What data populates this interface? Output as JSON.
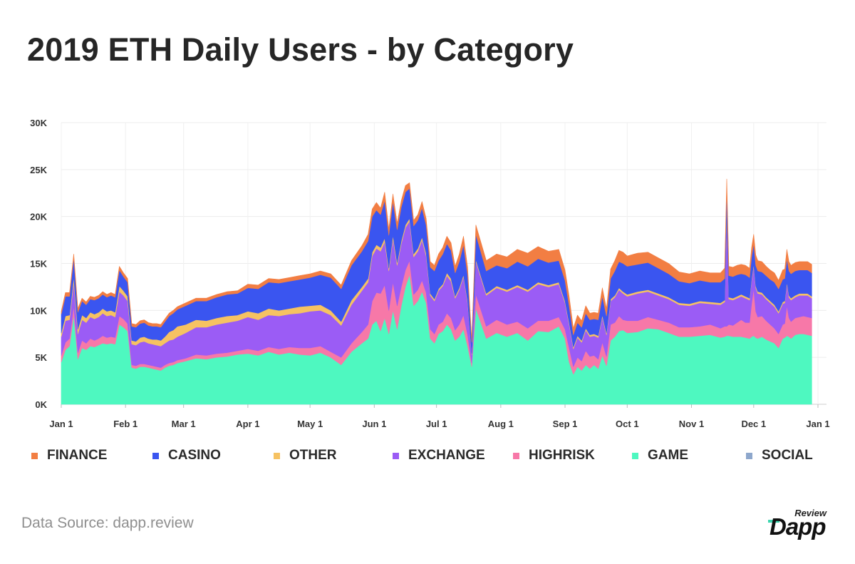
{
  "title": "2019 ETH Daily Users - by Category",
  "source": "Data Source: dapp.review",
  "logo": {
    "small": "Review",
    "large": "Dapp",
    "accent": "#3dd6b0"
  },
  "chart_data": {
    "type": "area",
    "stacked": true,
    "ylim": [
      0,
      30000
    ],
    "y_ticks": [
      {
        "value": 0,
        "label": "0K"
      },
      {
        "value": 5000,
        "label": "5K"
      },
      {
        "value": 10000,
        "label": "10K"
      },
      {
        "value": 15000,
        "label": "15K"
      },
      {
        "value": 20000,
        "label": "20K"
      },
      {
        "value": 25000,
        "label": "25K"
      },
      {
        "value": 30000,
        "label": "30K"
      }
    ],
    "x_ticks": [
      {
        "value": 0,
        "label": "Jan 1"
      },
      {
        "value": 31,
        "label": "Feb 1"
      },
      {
        "value": 59,
        "label": "Mar 1"
      },
      {
        "value": 90,
        "label": "Apr 1"
      },
      {
        "value": 120,
        "label": "May 1"
      },
      {
        "value": 151,
        "label": "Jun 1"
      },
      {
        "value": 181,
        "label": "Jul 1"
      },
      {
        "value": 212,
        "label": "Aug 1"
      },
      {
        "value": 243,
        "label": "Sep 1"
      },
      {
        "value": 273,
        "label": "Oct 1"
      },
      {
        "value": 304,
        "label": "Nov 1"
      },
      {
        "value": 334,
        "label": "Dec 1"
      },
      {
        "value": 365,
        "label": "Jan 1"
      }
    ],
    "x_domain": [
      0,
      365
    ],
    "grid": true,
    "legend_position": "bottom",
    "x": [
      0,
      2,
      4,
      6,
      8,
      10,
      12,
      14,
      16,
      18,
      20,
      22,
      24,
      26,
      28,
      30,
      32,
      34,
      36,
      38,
      40,
      42,
      44,
      46,
      48,
      50,
      52,
      54,
      56,
      58,
      60,
      65,
      70,
      75,
      80,
      85,
      90,
      95,
      100,
      105,
      110,
      115,
      120,
      125,
      130,
      135,
      140,
      145,
      148,
      150,
      152,
      154,
      156,
      158,
      160,
      162,
      164,
      166,
      168,
      170,
      172,
      174,
      176,
      178,
      180,
      182,
      184,
      186,
      188,
      190,
      192,
      194,
      196,
      198,
      200,
      205,
      210,
      215,
      220,
      225,
      230,
      235,
      240,
      243,
      245,
      247,
      249,
      251,
      253,
      255,
      257,
      259,
      261,
      263,
      265,
      267,
      269,
      271,
      273,
      278,
      283,
      288,
      293,
      298,
      303,
      308,
      313,
      318,
      320,
      321,
      322,
      324,
      326,
      328,
      330,
      332,
      333,
      334,
      335,
      336,
      338,
      340,
      342,
      344,
      346,
      348,
      349,
      350,
      351,
      352,
      354,
      356,
      358,
      360,
      362
    ],
    "series": [
      {
        "name": "SOCIAL",
        "color": "#8ea7cc",
        "values": [
          0,
          0,
          0,
          0,
          0,
          0,
          0,
          0,
          0,
          0,
          0,
          0,
          0,
          0,
          0,
          0,
          0,
          0,
          0,
          0,
          0,
          0,
          0,
          0,
          0,
          0,
          0,
          0,
          0,
          0,
          0,
          0,
          0,
          0,
          0,
          0,
          0,
          0,
          0,
          0,
          0,
          0,
          0,
          0,
          0,
          0,
          0,
          0,
          0,
          0,
          0,
          0,
          0,
          0,
          0,
          0,
          0,
          0,
          0,
          0,
          0,
          0,
          0,
          0,
          0,
          0,
          0,
          0,
          0,
          0,
          0,
          0,
          0,
          0,
          0,
          0,
          0,
          0,
          0,
          0,
          0,
          0,
          0,
          0,
          0,
          0,
          0,
          0,
          0,
          0,
          0,
          0,
          0,
          0,
          0,
          0,
          0,
          0,
          0,
          0,
          0,
          0,
          0,
          0,
          0,
          0,
          0,
          0,
          0,
          0,
          0,
          0,
          0,
          0,
          0,
          0,
          0,
          0,
          0,
          0,
          0,
          0,
          0,
          0,
          0,
          0,
          0,
          0,
          0,
          0,
          0,
          0,
          0,
          0,
          0
        ]
      },
      {
        "name": "GAME",
        "color": "#4ef8c0",
        "values": [
          4500,
          5800,
          6200,
          9500,
          4800,
          6000,
          5800,
          6200,
          6100,
          6300,
          6500,
          6400,
          6500,
          6400,
          8500,
          8200,
          7800,
          3900,
          3800,
          4000,
          4000,
          3900,
          3800,
          3700,
          3600,
          3900,
          4100,
          4200,
          4400,
          4500,
          4600,
          4900,
          4800,
          5000,
          5100,
          5300,
          5400,
          5200,
          5600,
          5300,
          5500,
          5300,
          5200,
          5500,
          5000,
          4200,
          5600,
          6500,
          7000,
          8500,
          8900,
          7800,
          9200,
          7500,
          10000,
          8000,
          10500,
          12500,
          13800,
          10500,
          11000,
          12000,
          10800,
          7000,
          6500,
          7500,
          7800,
          8500,
          8000,
          6800,
          7200,
          8000,
          6200,
          4000,
          10200,
          7000,
          7600,
          7200,
          7600,
          6800,
          7800,
          7700,
          8300,
          7000,
          4500,
          3200,
          4000,
          3600,
          4200,
          3800,
          4200,
          3800,
          5200,
          4100,
          6800,
          7200,
          7800,
          7900,
          7600,
          7700,
          8100,
          8000,
          7600,
          7200,
          7200,
          7300,
          7400,
          7100,
          7200,
          7300,
          7300,
          7200,
          7200,
          7200,
          7100,
          7000,
          7200,
          7300,
          7100,
          7000,
          7200,
          6900,
          6700,
          6500,
          6000,
          7000,
          7100,
          7300,
          7200,
          7000,
          7400,
          7500,
          7500,
          7400,
          7300
        ]
      },
      {
        "name": "HIGHRISK",
        "color": "#f778a8",
        "values": [
          700,
          800,
          800,
          1000,
          700,
          800,
          700,
          800,
          700,
          700,
          800,
          700,
          700,
          700,
          900,
          900,
          800,
          300,
          300,
          300,
          300,
          300,
          300,
          300,
          300,
          300,
          300,
          300,
          300,
          300,
          300,
          400,
          400,
          400,
          400,
          400,
          500,
          500,
          500,
          600,
          600,
          700,
          800,
          700,
          600,
          800,
          900,
          1200,
          1500,
          2500,
          3000,
          4000,
          3500,
          2500,
          3000,
          2500,
          2000,
          1800,
          1500,
          1200,
          1200,
          1200,
          1100,
          1000,
          1000,
          1000,
          1000,
          1200,
          1200,
          1100,
          1300,
          1500,
          1200,
          400,
          1500,
          1300,
          1400,
          1300,
          1200,
          1300,
          1100,
          1200,
          1000,
          1000,
          1500,
          800,
          1000,
          1000,
          1500,
          1300,
          1000,
          1000,
          1400,
          1000,
          1700,
          1500,
          1600,
          1100,
          1300,
          1200,
          1200,
          1000,
          1100,
          1000,
          1000,
          1000,
          1100,
          1000,
          1100,
          1000,
          1200,
          1200,
          1500,
          1800,
          1600,
          1700,
          3500,
          5000,
          2800,
          2300,
          2200,
          2000,
          1800,
          1600,
          1500,
          1500,
          1500,
          3200,
          2000,
          1800,
          1800,
          1800,
          1900,
          1900,
          1900
        ]
      },
      {
        "name": "EXCHANGE",
        "color": "#9b5cf5",
        "values": [
          2000,
          2300,
          2000,
          2500,
          2000,
          2200,
          2200,
          2300,
          2300,
          2300,
          2400,
          2300,
          2300,
          2200,
          2600,
          2500,
          2400,
          2200,
          2200,
          2300,
          2400,
          2300,
          2300,
          2300,
          2300,
          2300,
          2400,
          2400,
          2500,
          2600,
          2700,
          2900,
          3000,
          3100,
          3200,
          3200,
          3400,
          3300,
          3400,
          3500,
          3500,
          3700,
          3900,
          3800,
          3900,
          3400,
          4100,
          4400,
          4500,
          4800,
          4700,
          4500,
          4600,
          4200,
          4600,
          4300,
          4600,
          4500,
          4200,
          4000,
          4100,
          4300,
          3900,
          3600,
          3500,
          3600,
          3800,
          4000,
          3900,
          3400,
          3700,
          4100,
          3400,
          900,
          3500,
          3300,
          3400,
          3500,
          3700,
          3900,
          3900,
          3600,
          3500,
          2800,
          2500,
          1900,
          2100,
          2000,
          2200,
          2100,
          2100,
          2300,
          2700,
          2300,
          2500,
          2700,
          2800,
          2800,
          2600,
          2900,
          2700,
          2600,
          2500,
          2400,
          2300,
          2500,
          2200,
          2500,
          2600,
          12000,
          2700,
          2700,
          2600,
          2500,
          2600,
          2400,
          2500,
          2400,
          2500,
          2500,
          2300,
          2300,
          2300,
          2300,
          2200,
          2200,
          2200,
          2300,
          2200,
          2300,
          2200,
          2300,
          2200,
          2300,
          2100
        ]
      },
      {
        "name": "OTHER",
        "color": "#f6c262",
        "values": [
          400,
          500,
          500,
          600,
          500,
          500,
          500,
          500,
          500,
          500,
          500,
          500,
          500,
          500,
          600,
          500,
          500,
          400,
          400,
          500,
          500,
          500,
          500,
          600,
          600,
          700,
          900,
          1000,
          1100,
          1000,
          900,
          800,
          700,
          700,
          700,
          600,
          600,
          700,
          700,
          600,
          600,
          700,
          600,
          600,
          500,
          400,
          500,
          400,
          400,
          400,
          400,
          400,
          400,
          300,
          400,
          300,
          300,
          300,
          300,
          300,
          300,
          300,
          300,
          200,
          200,
          200,
          200,
          300,
          300,
          200,
          200,
          200,
          200,
          100,
          200,
          200,
          200,
          200,
          200,
          200,
          200,
          200,
          200,
          200,
          200,
          200,
          200,
          200,
          200,
          200,
          200,
          200,
          200,
          200,
          200,
          200,
          200,
          200,
          200,
          200,
          200,
          200,
          200,
          200,
          200,
          200,
          200,
          200,
          200,
          200,
          200,
          200,
          200,
          200,
          200,
          200,
          200,
          200,
          200,
          200,
          200,
          200,
          200,
          200,
          200,
          200,
          200,
          200,
          200,
          200,
          200,
          200,
          200,
          200,
          200
        ]
      },
      {
        "name": "CASINO",
        "color": "#3a55f0",
        "values": [
          2000,
          2100,
          2000,
          2000,
          1800,
          1500,
          1400,
          1400,
          1500,
          1500,
          1500,
          1500,
          1600,
          1600,
          1700,
          1500,
          1500,
          1500,
          1500,
          1500,
          1500,
          1400,
          1400,
          1400,
          1400,
          1600,
          1700,
          1800,
          1800,
          1900,
          2000,
          2000,
          2100,
          2200,
          2300,
          2300,
          2500,
          2600,
          2800,
          2900,
          2900,
          2900,
          3000,
          3200,
          3500,
          3500,
          3700,
          3800,
          4000,
          3800,
          3700,
          3500,
          4000,
          3500,
          3600,
          3500,
          3600,
          3500,
          3200,
          3000,
          3000,
          3100,
          3000,
          2800,
          3000,
          3000,
          3200,
          3100,
          3000,
          2500,
          2800,
          3200,
          2800,
          1200,
          2700,
          2400,
          2200,
          2300,
          2500,
          2500,
          2500,
          2400,
          2300,
          2200,
          1800,
          1300,
          1400,
          1400,
          1600,
          1600,
          1600,
          1700,
          2000,
          1800,
          2200,
          2600,
          2800,
          3000,
          3000,
          2900,
          2900,
          2700,
          2500,
          2300,
          2200,
          2200,
          2100,
          2200,
          2300,
          2400,
          2300,
          2300,
          2300,
          2200,
          2300,
          2200,
          2300,
          2200,
          2200,
          2200,
          2200,
          2300,
          2300,
          2400,
          2400,
          2400,
          2400,
          2500,
          2600,
          2600,
          2600,
          2500,
          2500,
          2500,
          2500
        ]
      },
      {
        "name": "FINANCE",
        "color": "#f27e43",
        "values": [
          300,
          400,
          400,
          400,
          400,
          300,
          300,
          300,
          300,
          300,
          300,
          300,
          300,
          300,
          400,
          400,
          400,
          300,
          300,
          300,
          300,
          300,
          300,
          300,
          300,
          300,
          300,
          300,
          300,
          300,
          300,
          300,
          300,
          300,
          300,
          300,
          400,
          400,
          400,
          400,
          400,
          400,
          400,
          400,
          400,
          400,
          500,
          600,
          700,
          800,
          800,
          700,
          900,
          700,
          800,
          700,
          700,
          700,
          600,
          600,
          600,
          700,
          700,
          600,
          600,
          700,
          700,
          800,
          800,
          700,
          800,
          900,
          800,
          300,
          1000,
          1100,
          1200,
          1200,
          1300,
          1400,
          1300,
          1200,
          1200,
          1100,
          1000,
          700,
          800,
          700,
          800,
          700,
          700,
          700,
          900,
          800,
          1000,
          1100,
          1200,
          1200,
          1100,
          1200,
          1100,
          1100,
          1100,
          1000,
          1000,
          1000,
          1000,
          1000,
          1100,
          1100,
          1000,
          1000,
          1000,
          1000,
          1000,
          1000,
          1000,
          1000,
          1100,
          1100,
          1100,
          1000,
          1000,
          1000,
          900,
          1000,
          1000,
          1000,
          1000,
          900,
          900,
          900,
          900,
          900,
          900
        ]
      }
    ]
  },
  "legend_items": [
    "FINANCE",
    "CASINO",
    "OTHER",
    "EXCHANGE",
    "HIGHRISK",
    "GAME",
    "SOCIAL"
  ]
}
